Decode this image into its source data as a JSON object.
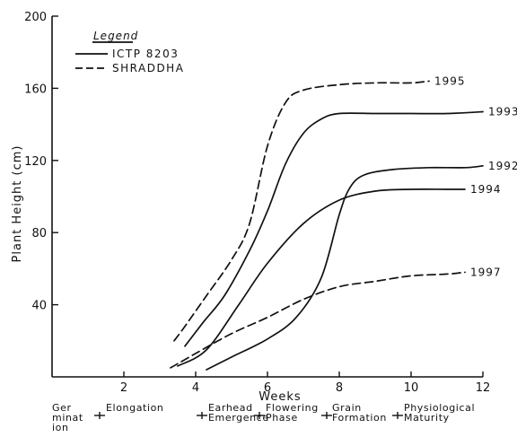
{
  "chart_data": {
    "type": "line",
    "title": "",
    "xlabel": "Weeks",
    "ylabel": "Plant Height (cm)",
    "xlim": [
      0,
      12
    ],
    "ylim": [
      0,
      200
    ],
    "x_ticks": [
      2,
      4,
      6,
      8,
      10,
      12
    ],
    "y_ticks": [
      40,
      80,
      120,
      160,
      200
    ],
    "grid": false,
    "legend": {
      "title": "Legend",
      "position": "top-left",
      "entries": [
        {
          "label": "ICTP 8203",
          "style": "solid"
        },
        {
          "label": "SHRADDHA",
          "style": "dashed"
        }
      ]
    },
    "series": [
      {
        "name": "1995",
        "variety": "SHRADDHA",
        "style": "dashed",
        "points": [
          [
            3.4,
            20
          ],
          [
            3.7,
            28
          ],
          [
            4.3,
            45
          ],
          [
            5.0,
            65
          ],
          [
            5.5,
            85
          ],
          [
            6.0,
            128
          ],
          [
            6.5,
            152
          ],
          [
            7.0,
            159
          ],
          [
            8.0,
            162
          ],
          [
            9.0,
            163
          ],
          [
            10.0,
            163
          ],
          [
            10.5,
            164
          ]
        ]
      },
      {
        "name": "1993",
        "variety": "ICTP 8203",
        "style": "solid",
        "points": [
          [
            3.7,
            17
          ],
          [
            4.2,
            30
          ],
          [
            4.8,
            45
          ],
          [
            5.5,
            70
          ],
          [
            6.0,
            92
          ],
          [
            6.5,
            118
          ],
          [
            7.0,
            135
          ],
          [
            7.5,
            143
          ],
          [
            8.0,
            146
          ],
          [
            9.0,
            146
          ],
          [
            10.0,
            146
          ],
          [
            11.0,
            146
          ],
          [
            12.0,
            147
          ]
        ]
      },
      {
        "name": "1992",
        "variety": "ICTP 8203",
        "style": "solid",
        "points": [
          [
            4.3,
            4
          ],
          [
            5.0,
            11
          ],
          [
            6.0,
            21
          ],
          [
            6.8,
            33
          ],
          [
            7.5,
            55
          ],
          [
            8.0,
            90
          ],
          [
            8.3,
            105
          ],
          [
            8.7,
            112
          ],
          [
            9.5,
            115
          ],
          [
            10.5,
            116
          ],
          [
            11.5,
            116
          ],
          [
            12.0,
            117
          ]
        ]
      },
      {
        "name": "1994",
        "variety": "ICTP 8203",
        "style": "solid",
        "points": [
          [
            3.5,
            6
          ],
          [
            4.3,
            15
          ],
          [
            5.2,
            40
          ],
          [
            6.0,
            63
          ],
          [
            7.0,
            85
          ],
          [
            8.0,
            98
          ],
          [
            9.0,
            103
          ],
          [
            10.0,
            104
          ],
          [
            11.0,
            104
          ],
          [
            11.5,
            104
          ]
        ]
      },
      {
        "name": "1997",
        "variety": "SHRADDHA",
        "style": "dashed",
        "points": [
          [
            3.3,
            5
          ],
          [
            4.0,
            13
          ],
          [
            5.0,
            24
          ],
          [
            6.0,
            33
          ],
          [
            7.0,
            43
          ],
          [
            8.0,
            50
          ],
          [
            9.0,
            53
          ],
          [
            10.0,
            56
          ],
          [
            11.0,
            57
          ],
          [
            11.5,
            58
          ]
        ]
      }
    ],
    "growth_stages": [
      {
        "lines": [
          "Ger",
          "minat",
          "ion"
        ]
      },
      {
        "lines": [
          "Elongation"
        ]
      },
      {
        "lines": [
          "Earhead",
          "Emergence"
        ]
      },
      {
        "lines": [
          "Flowering",
          "Phase"
        ]
      },
      {
        "lines": [
          "Grain",
          "Formation"
        ]
      },
      {
        "lines": [
          "Physiological",
          "Maturity"
        ]
      }
    ]
  }
}
